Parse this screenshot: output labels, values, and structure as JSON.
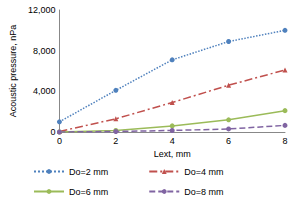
{
  "chart_data": {
    "type": "line",
    "x_label": "Lext, mm",
    "y_label": "Acoustic pressure, nPa",
    "x": [
      0,
      2,
      4,
      6,
      8
    ],
    "xlim": [
      0,
      8
    ],
    "xticks": [
      0,
      2,
      4,
      6,
      8
    ],
    "ylim": [
      0,
      12000
    ],
    "yticks": [
      0,
      4000,
      8000,
      12000
    ],
    "grid": false,
    "legend": "bottom",
    "series": [
      {
        "name": "Do=2 mm",
        "color": "#4f81bd",
        "line_style": "dotted",
        "marker": "circle",
        "values": [
          1000,
          4100,
          7100,
          8900,
          10000
        ]
      },
      {
        "name": "Do=4 mm",
        "color": "#c0504d",
        "line_style": "dashdot",
        "marker": "triangle",
        "values": [
          50,
          1300,
          2900,
          4600,
          6100
        ]
      },
      {
        "name": "Do=6 mm",
        "color": "#9bbb59",
        "line_style": "solid",
        "marker": "circle",
        "values": [
          0,
          150,
          600,
          1200,
          2100
        ]
      },
      {
        "name": "Do=8 mm",
        "color": "#8064a2",
        "line_style": "dashed",
        "marker": "circle",
        "values": [
          0,
          50,
          150,
          300,
          650
        ]
      }
    ]
  }
}
